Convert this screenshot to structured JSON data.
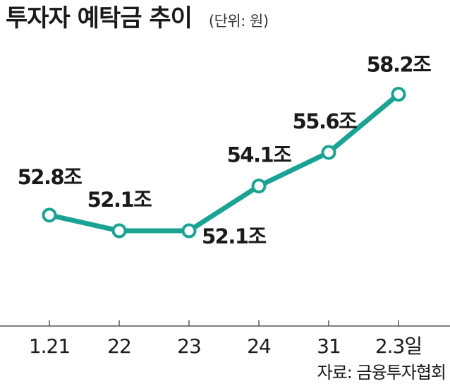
{
  "chart_data": {
    "type": "line",
    "title": "투자자 예탁금 추이",
    "unit": "(단위: 원)",
    "categories": [
      "1.21",
      "22",
      "23",
      "24",
      "31",
      "2.3일"
    ],
    "values": [
      52.8,
      52.1,
      52.1,
      54.1,
      55.6,
      58.2
    ],
    "data_labels": [
      "52.8조",
      "52.1조",
      "52.1조",
      "54.1조",
      "55.6조",
      "58.2조"
    ],
    "ylim": [
      49.8,
      58.5
    ],
    "grid": false,
    "source": "자료: 금융투자협회",
    "colors": {
      "line": "#1aa393",
      "marker_fill": "#ffffff",
      "axis": "#555555"
    }
  }
}
